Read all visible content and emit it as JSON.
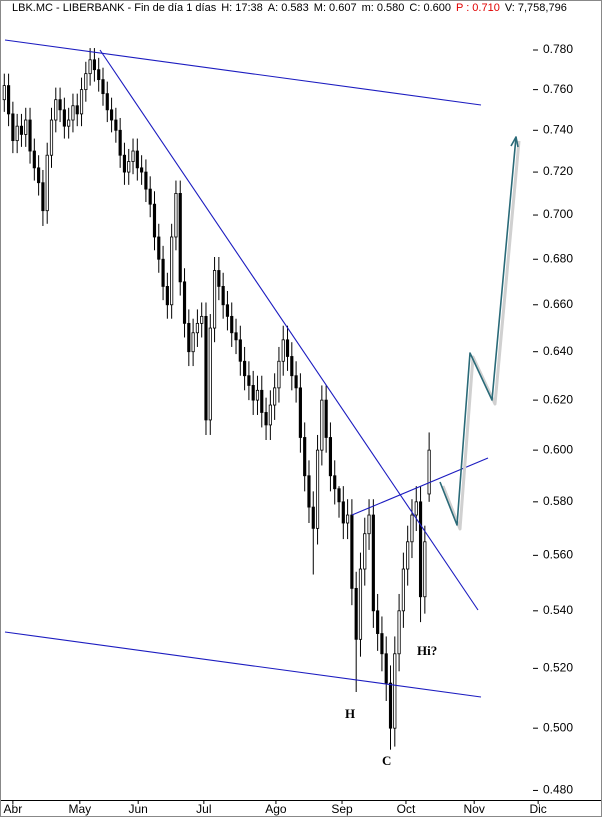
{
  "chart_data": {
    "type": "candlestick",
    "title": "LBK.MC - LIBERBANK - Fin de día 1 días",
    "header_stats": [
      "H: 17:38",
      "A: 0.583",
      "M: 0.607",
      "m: 0.580",
      "C: 0.600",
      "P : 0.710",
      "V: 7,758,796"
    ],
    "log_y": true,
    "up_color": "#ffffff",
    "down_color": "#000000",
    "xlim": [
      -1,
      126
    ],
    "xticks": [
      {
        "value": 2,
        "label": "Abr"
      },
      {
        "value": 17.6,
        "label": "May"
      },
      {
        "value": 31.2,
        "label": "Jun"
      },
      {
        "value": 46.5,
        "label": "Jul"
      },
      {
        "value": 63.3,
        "label": "Ago"
      },
      {
        "value": 78.7,
        "label": "Sep"
      },
      {
        "value": 93.6,
        "label": "Oct"
      },
      {
        "value": 109.5,
        "label": "Nov"
      },
      {
        "value": 124.4,
        "label": "Dic"
      }
    ],
    "ylim": [
      0.477,
      0.806
    ],
    "yticks": [
      {
        "value": 0.48,
        "label": "0.480"
      },
      {
        "value": 0.5,
        "label": "0.500"
      },
      {
        "value": 0.52,
        "label": "0.520"
      },
      {
        "value": 0.54,
        "label": "0.540"
      },
      {
        "value": 0.56,
        "label": "0.560"
      },
      {
        "value": 0.58,
        "label": "0.580"
      },
      {
        "value": 0.6,
        "label": "0.600"
      },
      {
        "value": 0.62,
        "label": "0.620"
      },
      {
        "value": 0.64,
        "label": "0.640"
      },
      {
        "value": 0.66,
        "label": "0.660"
      },
      {
        "value": 0.68,
        "label": "0.680"
      },
      {
        "value": 0.7,
        "label": "0.700"
      },
      {
        "value": 0.72,
        "label": "0.720"
      },
      {
        "value": 0.74,
        "label": "0.740"
      },
      {
        "value": 0.76,
        "label": "0.760"
      },
      {
        "value": 0.78,
        "label": "0.780"
      }
    ],
    "annotations": [
      "H",
      "C",
      "Hi?"
    ],
    "open": [
      0.755,
      0.762,
      0.748,
      0.735,
      0.742,
      0.738,
      0.745,
      0.73,
      0.722,
      0.715,
      0.702,
      0.728,
      0.745,
      0.755,
      0.75,
      0.742,
      0.745,
      0.752,
      0.748,
      0.76,
      0.768,
      0.775,
      0.77,
      0.765,
      0.758,
      0.75,
      0.745,
      0.74,
      0.728,
      0.72,
      0.725,
      0.73,
      0.722,
      0.72,
      0.712,
      0.705,
      0.69,
      0.68,
      0.668,
      0.66,
      0.69,
      0.71,
      0.67,
      0.652,
      0.64,
      0.648,
      0.652,
      0.655,
      0.612,
      0.65,
      0.675,
      0.668,
      0.66,
      0.655,
      0.648,
      0.645,
      0.636,
      0.63,
      0.626,
      0.62,
      0.624,
      0.615,
      0.61,
      0.618,
      0.625,
      0.636,
      0.645,
      0.638,
      0.63,
      0.625,
      0.605,
      0.59,
      0.578,
      0.57,
      0.6,
      0.62,
      0.605,
      0.59,
      0.585,
      0.58,
      0.572,
      0.575,
      0.548,
      0.53,
      0.555,
      0.568,
      0.575,
      0.54,
      0.532,
      0.525,
      0.515,
      0.5,
      0.525,
      0.54,
      0.555,
      0.565,
      0.575,
      0.58,
      0.545,
      0.583
    ],
    "high": [
      0.768,
      0.768,
      0.754,
      0.748,
      0.748,
      0.751,
      0.751,
      0.736,
      0.728,
      0.721,
      0.734,
      0.751,
      0.761,
      0.761,
      0.756,
      0.751,
      0.758,
      0.758,
      0.766,
      0.774,
      0.781,
      0.781,
      0.776,
      0.771,
      0.764,
      0.756,
      0.751,
      0.746,
      0.734,
      0.731,
      0.736,
      0.736,
      0.728,
      0.726,
      0.718,
      0.711,
      0.696,
      0.686,
      0.674,
      0.696,
      0.716,
      0.716,
      0.676,
      0.658,
      0.654,
      0.658,
      0.661,
      0.661,
      0.656,
      0.681,
      0.681,
      0.674,
      0.666,
      0.661,
      0.654,
      0.651,
      0.642,
      0.636,
      0.632,
      0.63,
      0.63,
      0.621,
      0.624,
      0.631,
      0.642,
      0.651,
      0.651,
      0.644,
      0.636,
      0.631,
      0.611,
      0.596,
      0.584,
      0.606,
      0.626,
      0.626,
      0.611,
      0.596,
      0.586,
      0.586,
      0.581,
      0.581,
      0.554,
      0.561,
      0.574,
      0.581,
      0.581,
      0.546,
      0.538,
      0.531,
      0.521,
      0.531,
      0.546,
      0.561,
      0.571,
      0.581,
      0.586,
      0.586,
      0.571,
      0.607
    ],
    "low": [
      0.749,
      0.742,
      0.729,
      0.729,
      0.732,
      0.732,
      0.724,
      0.716,
      0.709,
      0.695,
      0.696,
      0.722,
      0.739,
      0.744,
      0.736,
      0.736,
      0.739,
      0.742,
      0.742,
      0.754,
      0.762,
      0.764,
      0.759,
      0.752,
      0.744,
      0.739,
      0.734,
      0.722,
      0.714,
      0.714,
      0.719,
      0.716,
      0.714,
      0.706,
      0.699,
      0.684,
      0.674,
      0.662,
      0.654,
      0.654,
      0.684,
      0.664,
      0.646,
      0.634,
      0.634,
      0.642,
      0.646,
      0.606,
      0.606,
      0.644,
      0.662,
      0.654,
      0.649,
      0.642,
      0.639,
      0.63,
      0.624,
      0.62,
      0.614,
      0.614,
      0.609,
      0.604,
      0.604,
      0.612,
      0.619,
      0.63,
      0.632,
      0.624,
      0.619,
      0.599,
      0.584,
      0.572,
      0.553,
      0.564,
      0.594,
      0.599,
      0.584,
      0.579,
      0.574,
      0.566,
      0.566,
      0.542,
      0.512,
      0.524,
      0.549,
      0.562,
      0.534,
      0.526,
      0.519,
      0.509,
      0.493,
      0.494,
      0.519,
      0.534,
      0.549,
      0.559,
      0.569,
      0.536,
      0.539,
      0.58
    ],
    "close": [
      0.762,
      0.748,
      0.735,
      0.742,
      0.738,
      0.745,
      0.73,
      0.722,
      0.715,
      0.702,
      0.728,
      0.745,
      0.755,
      0.75,
      0.742,
      0.745,
      0.752,
      0.748,
      0.76,
      0.768,
      0.775,
      0.77,
      0.765,
      0.758,
      0.75,
      0.745,
      0.74,
      0.728,
      0.72,
      0.725,
      0.73,
      0.722,
      0.72,
      0.712,
      0.705,
      0.69,
      0.68,
      0.668,
      0.66,
      0.69,
      0.71,
      0.67,
      0.652,
      0.64,
      0.648,
      0.652,
      0.655,
      0.612,
      0.65,
      0.675,
      0.668,
      0.66,
      0.655,
      0.648,
      0.645,
      0.636,
      0.63,
      0.626,
      0.62,
      0.624,
      0.615,
      0.61,
      0.618,
      0.625,
      0.636,
      0.645,
      0.638,
      0.63,
      0.625,
      0.605,
      0.59,
      0.578,
      0.57,
      0.6,
      0.62,
      0.605,
      0.59,
      0.585,
      0.58,
      0.572,
      0.575,
      0.548,
      0.53,
      0.555,
      0.568,
      0.575,
      0.54,
      0.532,
      0.525,
      0.515,
      0.5,
      0.525,
      0.54,
      0.555,
      0.565,
      0.575,
      0.58,
      0.545,
      0.565,
      0.6
    ]
  }
}
